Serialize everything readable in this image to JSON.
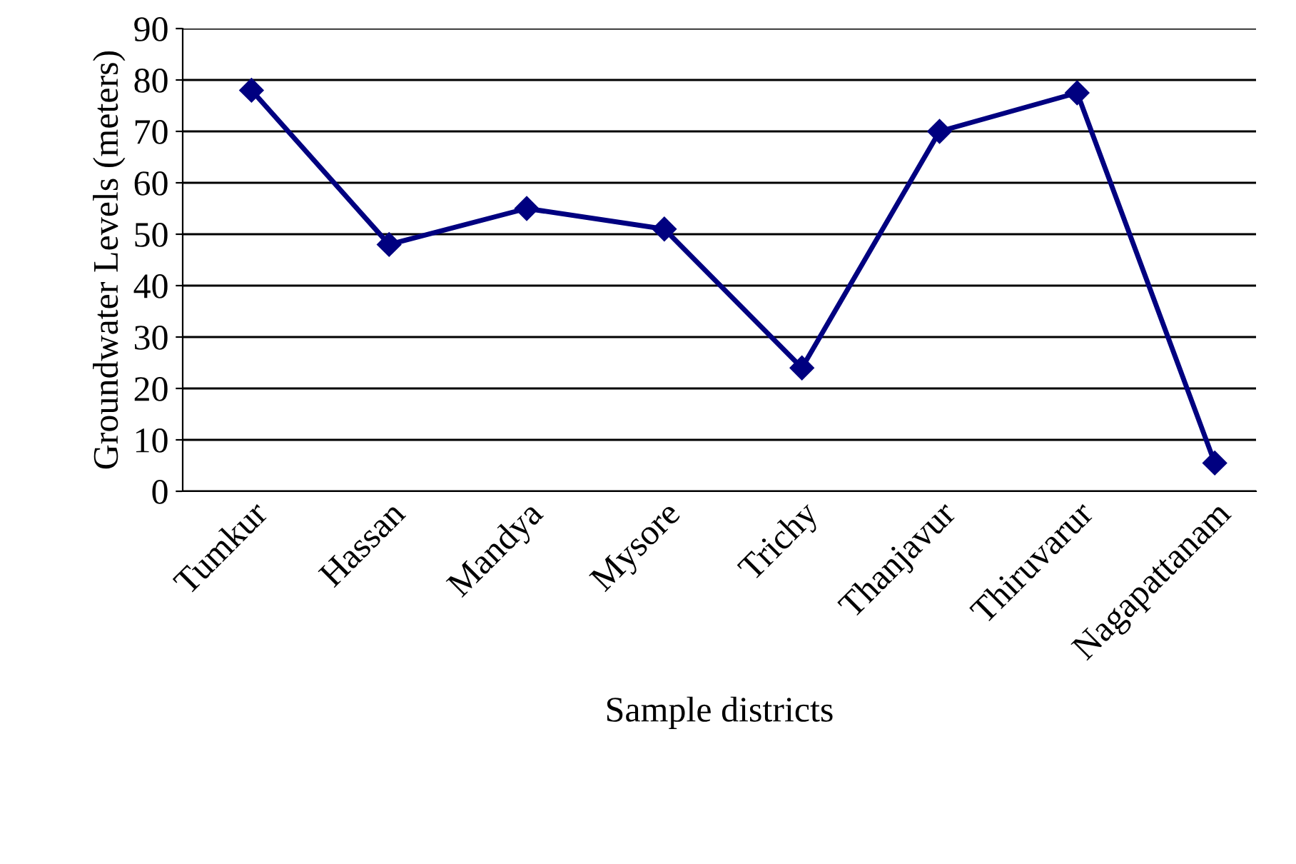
{
  "chart_data": {
    "type": "line",
    "xlabel": "Sample districts",
    "ylabel": "Groundwater Levels (meters)",
    "categories": [
      "Tumkur",
      "Hassan",
      "Mandya",
      "Mysore",
      "Trichy",
      "Thanjavur",
      "Thiruvarur",
      "Nagapattanam"
    ],
    "series": [
      {
        "color": "#000080",
        "values": [
          78,
          48,
          55,
          51,
          24,
          70,
          77.5,
          5.5
        ]
      }
    ],
    "ylim": [
      0,
      90
    ],
    "yticks": [
      0,
      10,
      20,
      30,
      40,
      50,
      60,
      70,
      80,
      90
    ],
    "grid": "y",
    "marker": "diamond",
    "line_style": "solid"
  }
}
